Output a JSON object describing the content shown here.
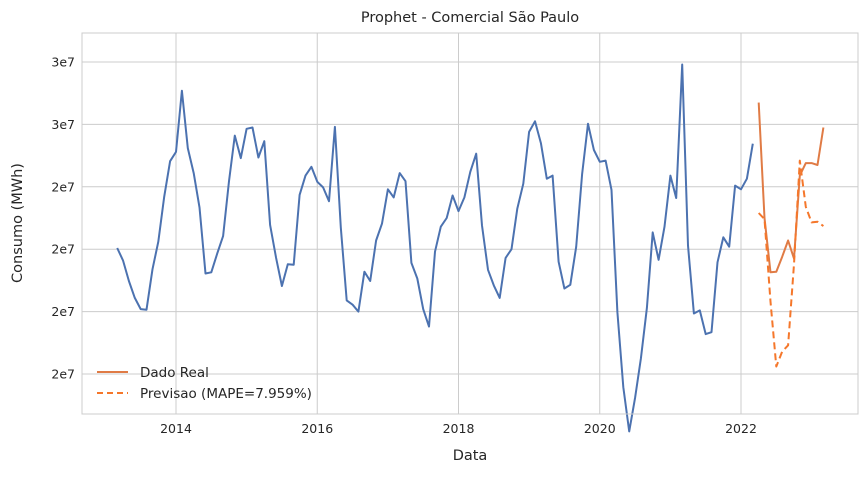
{
  "chart_data": {
    "type": "line",
    "title": "Prophet - Comercial São Paulo",
    "xlabel": "Data",
    "ylabel": "Consumo (MWh)",
    "x_ticks": [
      "2014",
      "2016",
      "2018",
      "2020",
      "2022"
    ],
    "y_ticks": [
      "2e7",
      "2e7",
      "2e7",
      "2e7",
      "3e7",
      "3e7"
    ],
    "grid": true,
    "legend_position": "lower-left",
    "colors": {
      "historical": "#4c72b0",
      "real": "#e07b45",
      "forecast": "#f5772b",
      "grid": "#cccccc"
    },
    "series": [
      {
        "x": [
          2013.167,
          2013.25,
          2013.333,
          2013.417,
          2013.5,
          2013.583,
          2013.667,
          2013.75,
          2013.833,
          2013.917,
          2014.0,
          2014.083,
          2014.167,
          2014.25,
          2014.333,
          2014.417,
          2014.5,
          2014.583,
          2014.667,
          2014.75,
          2014.833,
          2014.917,
          2015.0,
          2015.083,
          2015.167,
          2015.25,
          2015.333,
          2015.417,
          2015.5,
          2015.583,
          2015.667,
          2015.75,
          2015.833,
          2015.917,
          2016.0,
          2016.083,
          2016.167,
          2016.25,
          2016.333,
          2016.417,
          2016.5,
          2016.583,
          2016.667,
          2016.75,
          2016.833,
          2016.917,
          2017.0,
          2017.083,
          2017.167,
          2017.25,
          2017.333,
          2017.417,
          2017.5,
          2017.583,
          2017.667,
          2017.75,
          2017.833,
          2017.917,
          2018.0,
          2018.083,
          2018.167,
          2018.25,
          2018.333,
          2018.417,
          2018.5,
          2018.583,
          2018.667,
          2018.75,
          2018.833,
          2018.917,
          2019.0,
          2019.083,
          2019.167,
          2019.25,
          2019.333,
          2019.417,
          2019.5,
          2019.583,
          2019.667,
          2019.75,
          2019.833,
          2019.917,
          2020.0,
          2020.083,
          2020.167,
          2020.25,
          2020.333,
          2020.417,
          2020.5,
          2020.583,
          2020.667,
          2020.75,
          2020.833,
          2020.917,
          2021.0,
          2021.083,
          2021.167,
          2021.25,
          2021.333,
          2021.417,
          2021.5,
          2021.583,
          2021.667,
          2021.75,
          2021.833,
          2021.917,
          2022.0,
          2022.083,
          2022.167
        ],
        "values": [
          2.202,
          2.182,
          2.149,
          2.122,
          2.104,
          2.103,
          2.168,
          2.212,
          2.284,
          2.341,
          2.356,
          2.454,
          2.362,
          2.322,
          2.267,
          2.161,
          2.163,
          2.193,
          2.221,
          2.309,
          2.382,
          2.346,
          2.393,
          2.395,
          2.347,
          2.373,
          2.239,
          2.186,
          2.141,
          2.176,
          2.175,
          2.287,
          2.318,
          2.332,
          2.308,
          2.299,
          2.277,
          2.396,
          2.235,
          2.118,
          2.111,
          2.1,
          2.164,
          2.149,
          2.214,
          2.241,
          2.296,
          2.283,
          2.322,
          2.309,
          2.178,
          2.153,
          2.104,
          2.076,
          2.196,
          2.236,
          2.25,
          2.286,
          2.261,
          2.283,
          2.324,
          2.353,
          2.238,
          2.167,
          2.142,
          2.122,
          2.186,
          2.2,
          2.265,
          2.305,
          2.388,
          2.405,
          2.37,
          2.313,
          2.318,
          2.18,
          2.137,
          2.143,
          2.204,
          2.32,
          2.401,
          2.359,
          2.34,
          2.342,
          2.295,
          2.099,
          1.979,
          1.908,
          1.962,
          2.025,
          2.106,
          2.227,
          2.183,
          2.236,
          2.318,
          2.282,
          2.496,
          2.206,
          2.097,
          2.102,
          2.064,
          2.067,
          2.179,
          2.219,
          2.204,
          2.302,
          2.296,
          2.313,
          2.369
        ],
        "style": "solid"
      },
      {
        "name": "Dado Real",
        "x": [
          2022.25,
          2022.333,
          2022.417,
          2022.5,
          2022.583,
          2022.667,
          2022.75,
          2022.833,
          2022.917,
          2023.0,
          2023.083,
          2023.167
        ],
        "values": [
          2.435,
          2.25,
          2.163,
          2.164,
          2.188,
          2.214,
          2.185,
          2.318,
          2.338,
          2.338,
          2.335,
          2.395
        ],
        "style": "solid"
      },
      {
        "name": "Previsao (MAPE=7.959%)",
        "x": [
          2022.25,
          2022.333,
          2022.417,
          2022.5,
          2022.583,
          2022.667,
          2022.75,
          2022.833,
          2022.917,
          2023.0,
          2023.083,
          2023.167
        ],
        "values": [
          2.258,
          2.248,
          2.116,
          2.012,
          2.036,
          2.046,
          2.176,
          2.342,
          2.268,
          2.243,
          2.244,
          2.237
        ],
        "style": "dashed"
      }
    ]
  }
}
